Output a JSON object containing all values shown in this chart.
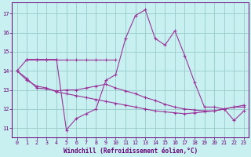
{
  "xlabel": "Windchill (Refroidissement éolien,°C)",
  "bg_color": "#c8f0f0",
  "line_color": "#993399",
  "grid_color": "#99cccc",
  "axis_label_color": "#660077",
  "tick_label_color": "#660077",
  "xlim": [
    -0.5,
    23.5
  ],
  "ylim": [
    10.5,
    17.6
  ],
  "yticks": [
    11,
    12,
    13,
    14,
    15,
    16,
    17
  ],
  "xticks": [
    0,
    1,
    2,
    3,
    4,
    5,
    6,
    7,
    8,
    9,
    10,
    11,
    12,
    13,
    14,
    15,
    16,
    17,
    18,
    19,
    20,
    21,
    22,
    23
  ],
  "zigzag_x": [
    0,
    1,
    2,
    3,
    4,
    5,
    6,
    7,
    8,
    9,
    10,
    11,
    12,
    13,
    14,
    15,
    16,
    17,
    18,
    19,
    20,
    21,
    22,
    23
  ],
  "zigzag_y": [
    14.0,
    14.6,
    14.6,
    14.6,
    14.6,
    10.9,
    11.5,
    11.75,
    12.0,
    13.5,
    13.8,
    15.7,
    16.9,
    17.2,
    15.7,
    15.35,
    16.1,
    14.8,
    13.4,
    12.1,
    12.1,
    12.0,
    11.4,
    11.9
  ],
  "flat_x": [
    1,
    2,
    3,
    4,
    5,
    6,
    7,
    8,
    9,
    10
  ],
  "flat_y": [
    14.6,
    14.6,
    14.6,
    14.6,
    14.6,
    14.6,
    14.6,
    14.6,
    14.6,
    14.6
  ],
  "linear1_x": [
    0,
    1,
    2,
    3,
    4,
    5,
    6,
    7,
    8,
    9,
    10,
    11,
    12,
    13,
    14,
    15,
    16,
    17,
    18,
    19,
    20,
    21,
    22,
    23
  ],
  "linear1_y": [
    14.0,
    13.6,
    13.1,
    13.05,
    12.95,
    13.0,
    13.0,
    13.1,
    13.2,
    13.3,
    13.1,
    12.95,
    12.8,
    12.6,
    12.45,
    12.25,
    12.1,
    12.0,
    11.95,
    11.9,
    11.9,
    12.0,
    12.1,
    12.2
  ],
  "linear2_x": [
    0,
    1,
    2,
    3,
    4,
    5,
    6,
    7,
    8,
    9,
    10,
    11,
    12,
    13,
    14,
    15,
    16,
    17,
    18,
    19,
    20,
    21,
    22,
    23
  ],
  "linear2_y": [
    14.0,
    13.5,
    13.2,
    13.1,
    12.9,
    12.8,
    12.7,
    12.6,
    12.5,
    12.4,
    12.3,
    12.2,
    12.1,
    12.0,
    11.9,
    11.85,
    11.8,
    11.75,
    11.8,
    11.85,
    11.9,
    12.0,
    12.1,
    12.1
  ]
}
